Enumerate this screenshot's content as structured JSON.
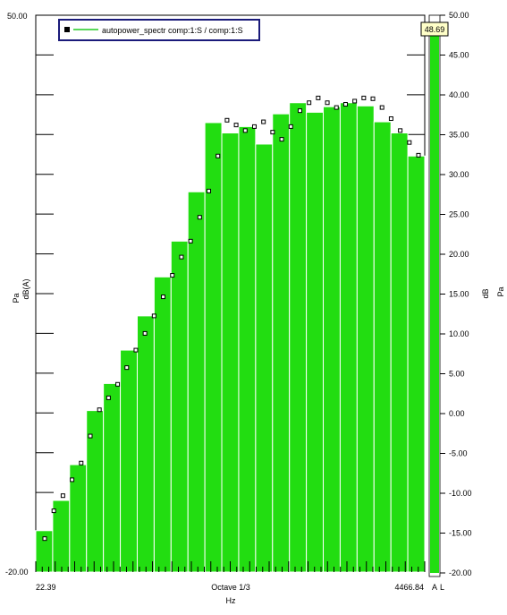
{
  "chart_data": {
    "type": "bar",
    "legend": {
      "label": "autopower_spectr comp:1:S / comp:1:S",
      "position": "top-left"
    },
    "left_axis": {
      "units": [
        "Pa",
        "dB(A)"
      ],
      "top_label": "50.00",
      "bottom_label": "-20.00",
      "ylim": [
        -20,
        50
      ]
    },
    "right_axis": {
      "units": [
        "dB",
        "Pa"
      ],
      "ticks": [
        "50.00",
        "45.00",
        "40.00",
        "35.00",
        "30.00",
        "25.00",
        "20.00",
        "15.00",
        "10.00",
        "5.00",
        "0.00",
        "-5.00",
        "-10.00",
        "-15.00",
        "-20.00"
      ]
    },
    "x_axis": {
      "left_label": "22.39",
      "center_label": "Octave 1/3",
      "right_label": "4466.84",
      "unit": "Hz",
      "scale": "log"
    },
    "overall_level": {
      "value": "48.69",
      "bar_value": 48.69,
      "labels": [
        "A",
        "L"
      ]
    },
    "values": [
      -14.8,
      -11.0,
      -6.5,
      0.3,
      3.7,
      7.9,
      12.2,
      17.1,
      21.6,
      27.8,
      36.5,
      35.2,
      36.0,
      33.8,
      37.6,
      39.0,
      37.8,
      38.5,
      39.0,
      38.6,
      36.6,
      35.2,
      32.3
    ],
    "markers": [
      -15.8,
      -12.3,
      -10.4,
      -8.4,
      -6.3,
      -2.9,
      0.4,
      1.9,
      3.6,
      5.7,
      7.9,
      10.0,
      12.2,
      14.6,
      17.3,
      19.6,
      21.6,
      24.6,
      27.9,
      32.3,
      36.8,
      36.2,
      35.5,
      36.0,
      36.6,
      35.3,
      34.4,
      36.0,
      38.0,
      39.0,
      39.6,
      39.0,
      38.4,
      38.8,
      39.2,
      39.6,
      39.5,
      38.4,
      37.0,
      35.5,
      34.0,
      32.4
    ]
  }
}
